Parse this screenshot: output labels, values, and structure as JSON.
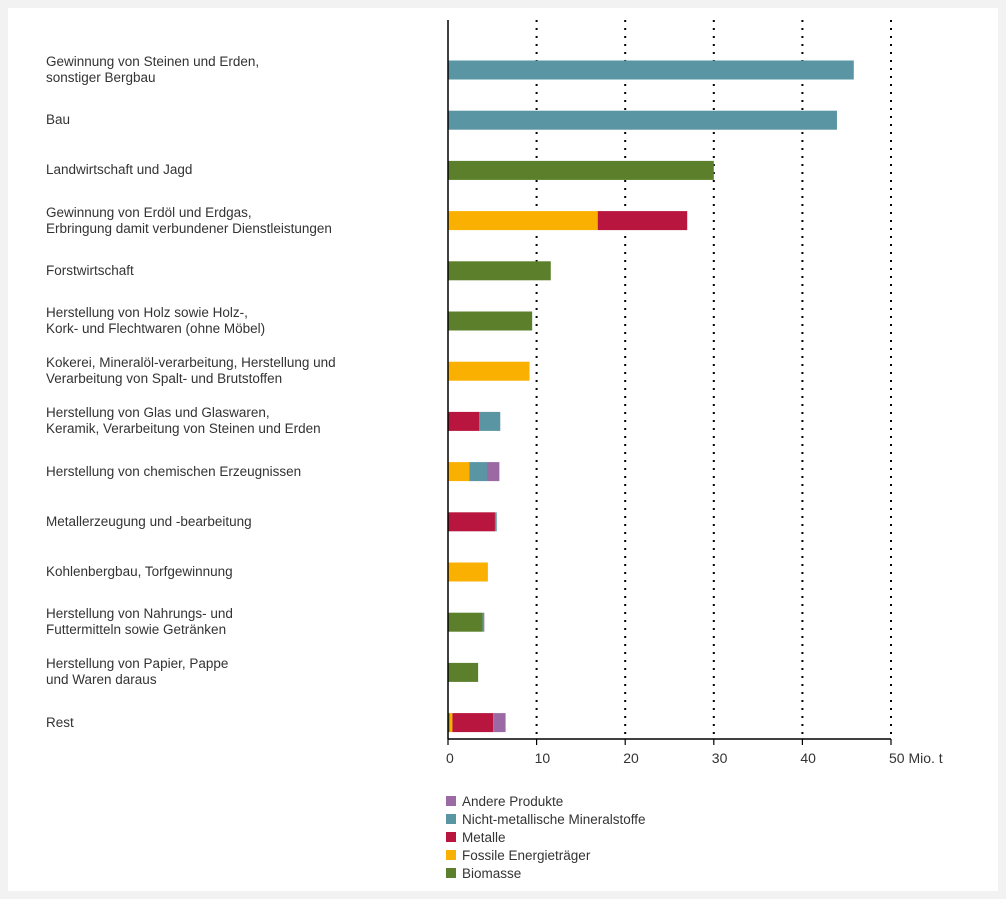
{
  "chart_data": {
    "type": "bar",
    "orientation": "horizontal",
    "stacked": true,
    "xlim": [
      0,
      50
    ],
    "x_ticks": [
      0,
      10,
      20,
      30,
      40,
      50
    ],
    "x_tick_labels": [
      "0",
      "10",
      "20",
      "30",
      "40",
      "50 Mio. t"
    ],
    "categories": [
      [
        "Gewinnung von Steinen und Erden,",
        "sonstiger Bergbau"
      ],
      [
        "Bau"
      ],
      [
        "Landwirtschaft und Jagd"
      ],
      [
        "Gewinnung von Erdöl und Erdgas,",
        "Erbringung damit verbundener Dienstleistungen"
      ],
      [
        "Forstwirtschaft"
      ],
      [
        "Herstellung von Holz sowie Holz-,",
        "Kork- und Flechtwaren (ohne Möbel)"
      ],
      [
        "Kokerei, Mineralöl-verarbeitung, Herstellung und",
        "Verarbeitung von Spalt- und Brutstoffen"
      ],
      [
        "Herstellung von Glas und Glaswaren,",
        "Keramik, Verarbeitung von Steinen und Erden"
      ],
      [
        "Herstellung von chemischen Erzeugnissen"
      ],
      [
        "Metallerzeugung und -bearbeitung"
      ],
      [
        "Kohlenbergbau, Torfgewinnung"
      ],
      [
        "Herstellung von Nahrungs- und",
        "Futtermitteln sowie Getränken"
      ],
      [
        "Herstellung von Papier, Pappe",
        "und Waren daraus"
      ],
      [
        "Rest"
      ]
    ],
    "series": [
      {
        "name": "Biomasse",
        "color": "#5b7f2a",
        "values": [
          0,
          0,
          30.0,
          0,
          11.6,
          9.5,
          0,
          0,
          0,
          0,
          0,
          3.9,
          3.4,
          0.2
        ]
      },
      {
        "name": "Fossile Energieträger",
        "color": "#f9b000",
        "values": [
          0,
          0,
          0,
          16.9,
          0,
          0,
          9.2,
          0,
          2.4,
          0,
          4.5,
          0,
          0,
          0.3
        ]
      },
      {
        "name": "Metalle",
        "color": "#b8163e",
        "values": [
          0,
          0,
          0,
          10.1,
          0,
          0,
          0,
          3.5,
          0,
          5.3,
          0,
          0,
          0,
          4.6
        ]
      },
      {
        "name": "Nicht-metallische Mineralstoffe",
        "color": "#5a95a3",
        "values": [
          45.8,
          43.9,
          0,
          0,
          0,
          0,
          0,
          2.4,
          2.0,
          0.2,
          0,
          0.1,
          0,
          0
        ]
      },
      {
        "name": "Andere Produkte",
        "color": "#9b6aa5",
        "values": [
          0,
          0,
          0,
          0,
          0,
          0,
          0,
          0,
          1.4,
          0,
          0,
          0.1,
          0,
          1.4
        ]
      }
    ],
    "legend_order": [
      "Andere Produkte",
      "Nicht-metallische Mineralstoffe",
      "Metalle",
      "Fossile Energieträger",
      "Biomasse"
    ],
    "legend_position": "bottom",
    "grid": "vertical-dotted"
  }
}
